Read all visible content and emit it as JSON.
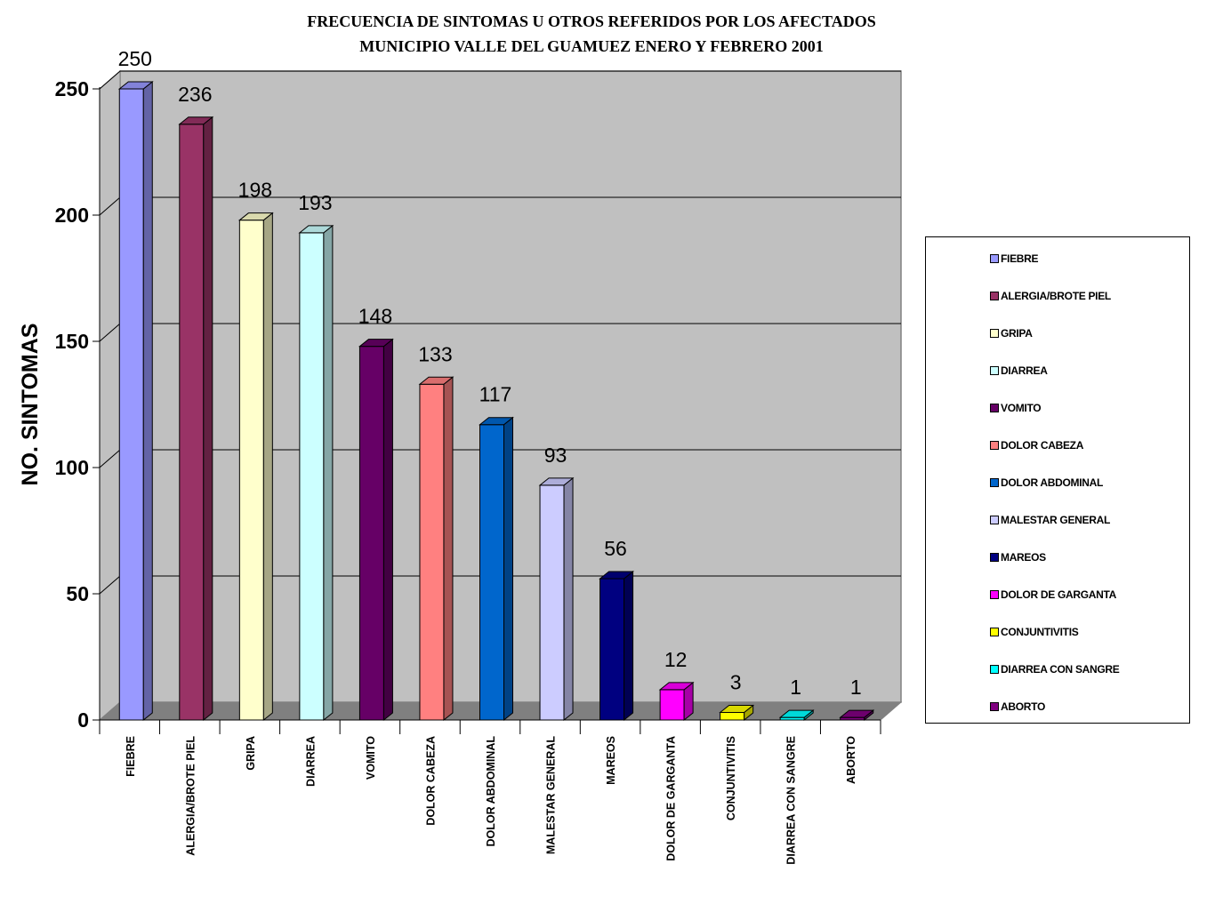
{
  "chart_data": {
    "type": "bar",
    "title_lines": [
      "FRECUENCIA DE SINTOMAS U OTROS  REFERIDOS POR LOS AFECTADOS",
      "MUNICIPIO VALLE DEL GUAMUEZ ENERO Y FEBRERO 2001"
    ],
    "ylabel": "NO. SINTOMAS",
    "xlabel": "",
    "ylim": [
      0,
      250
    ],
    "yticks": [
      0,
      50,
      100,
      150,
      200,
      250
    ],
    "grid": true,
    "legend_position": "right",
    "categories": [
      "FIEBRE",
      "ALERGIA/BROTE PIEL",
      "GRIPA",
      "DIARREA",
      "VOMITO",
      "DOLOR CABEZA",
      "DOLOR ABDOMINAL",
      "MALESTAR GENERAL",
      "MAREOS",
      "DOLOR DE GARGANTA",
      "CONJUNTIVITIS",
      "DIARREA CON SANGRE",
      "ABORTO"
    ],
    "values": [
      250,
      236,
      198,
      193,
      148,
      133,
      117,
      93,
      56,
      12,
      3,
      1,
      1
    ],
    "colors": [
      "#9999FF",
      "#993366",
      "#FFFFCC",
      "#CCFFFF",
      "#660066",
      "#FF8080",
      "#0066CC",
      "#CCCCFF",
      "#000080",
      "#FF00FF",
      "#FFFF00",
      "#00FFFF",
      "#800080"
    ],
    "wall_color": "#C0C0C0",
    "floor_color": "#808080"
  }
}
